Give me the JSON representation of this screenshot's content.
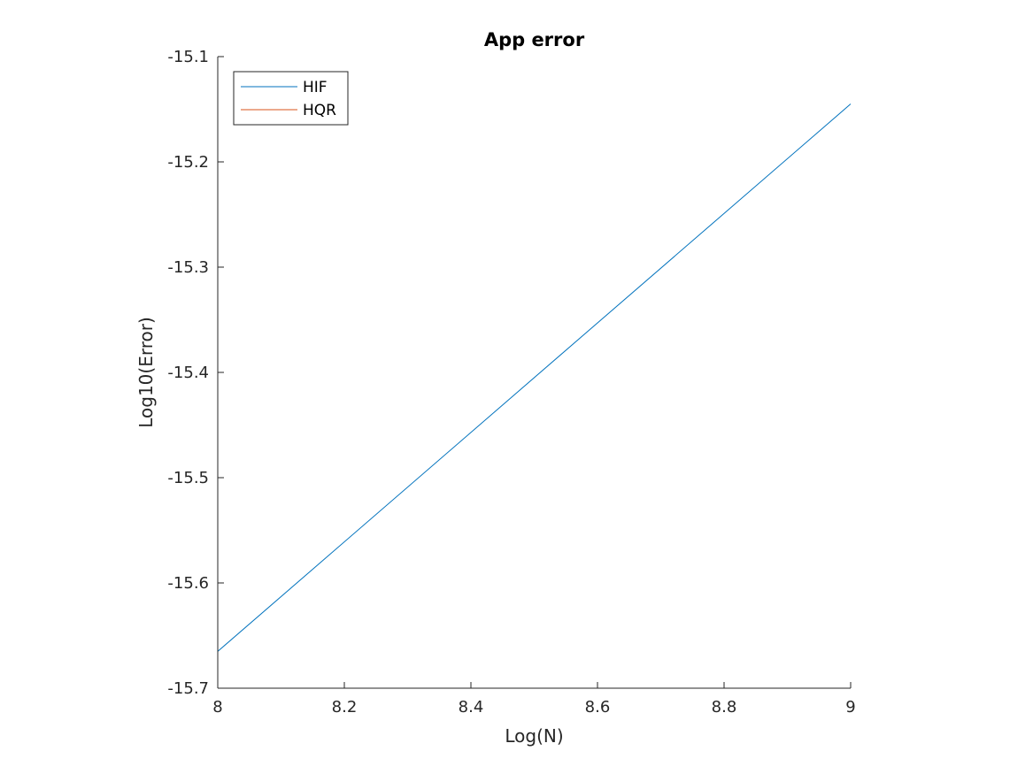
{
  "chart_data": {
    "type": "line",
    "title": "App error",
    "xlabel": "Log(N)",
    "ylabel": "Log10(Error)",
    "xlim": [
      8,
      9
    ],
    "ylim": [
      -15.7,
      -15.1
    ],
    "xticks": [
      8,
      8.2,
      8.4,
      8.6,
      8.8,
      9
    ],
    "xtick_labels": [
      "8",
      "8.2",
      "8.4",
      "8.6",
      "8.8",
      "9"
    ],
    "yticks": [
      -15.1,
      -15.2,
      -15.3,
      -15.4,
      -15.5,
      -15.6,
      -15.7
    ],
    "ytick_labels": [
      "-15.1",
      "-15.2",
      "-15.3",
      "-15.4",
      "-15.5",
      "-15.6",
      "-15.7"
    ],
    "grid": false,
    "legend_position": "top-left",
    "series": [
      {
        "name": "HIF",
        "color": "#0072BD",
        "x": [
          8,
          9
        ],
        "y": [
          -15.665,
          -15.145
        ]
      },
      {
        "name": "HQR",
        "color": "#D95319",
        "x": [],
        "y": []
      }
    ]
  }
}
